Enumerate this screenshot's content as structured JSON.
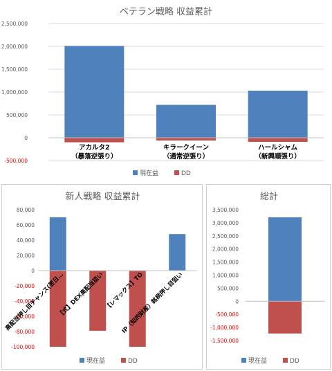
{
  "colors": {
    "profit": "#4f81bd",
    "dd": "#c0504d"
  },
  "chart_data": [
    {
      "type": "bar",
      "title": "ベテラン戦略 収益累計",
      "categories": [
        "アカルタ2\n（暴落逆張り）",
        "キラークイーン\n（通常逆張り）",
        "ハールシャム\n（新興順張り）"
      ],
      "series": [
        {
          "name": "現在益",
          "values": [
            2010000,
            720000,
            1030000
          ]
        },
        {
          "name": "DD",
          "values": [
            -100000,
            -60000,
            -90000
          ]
        }
      ],
      "ylim": [
        -500000,
        2500000
      ],
      "yticks": [
        "2,500,000",
        "2,000,000",
        "1,500,000",
        "1,000,000",
        "500,000",
        "0",
        "-500,000"
      ],
      "grid": true,
      "legend": "bottom"
    },
    {
      "type": "bar",
      "title": "新人戦略 収益累計",
      "categories": [
        "高配当押し目チャンス(翌日…",
        "【式】DEX高配当狙い",
        "【レマックス】TO",
        "IP（知的財産）銘柄押し目狙い"
      ],
      "series": [
        {
          "name": "現在益",
          "values": [
            70000,
            0,
            0,
            48000
          ]
        },
        {
          "name": "DD",
          "values": [
            -100000,
            -79000,
            -100000,
            0
          ]
        }
      ],
      "ylim": [
        -100000,
        80000
      ],
      "yticks": [
        "80,000",
        "60,000",
        "40,000",
        "20,000",
        "0",
        "-20,000",
        "-40,000",
        "-60,000",
        "-80,000",
        "-100,000"
      ],
      "grid": false,
      "legend": "bottom"
    },
    {
      "type": "bar",
      "title": "総計",
      "categories": [
        ""
      ],
      "series": [
        {
          "name": "現在益",
          "values": [
            3210000
          ]
        },
        {
          "name": "DD",
          "values": [
            -1230000
          ]
        }
      ],
      "ylim": [
        -1500000,
        3500000
      ],
      "yticks": [
        "3,500,000",
        "3,000,000",
        "2,500,000",
        "2,000,000",
        "1,500,000",
        "1,000,000",
        "500,000",
        "0",
        "-500,000",
        "-1,000,000",
        "-1,500,000"
      ],
      "grid": false,
      "legend": "bottom"
    }
  ]
}
